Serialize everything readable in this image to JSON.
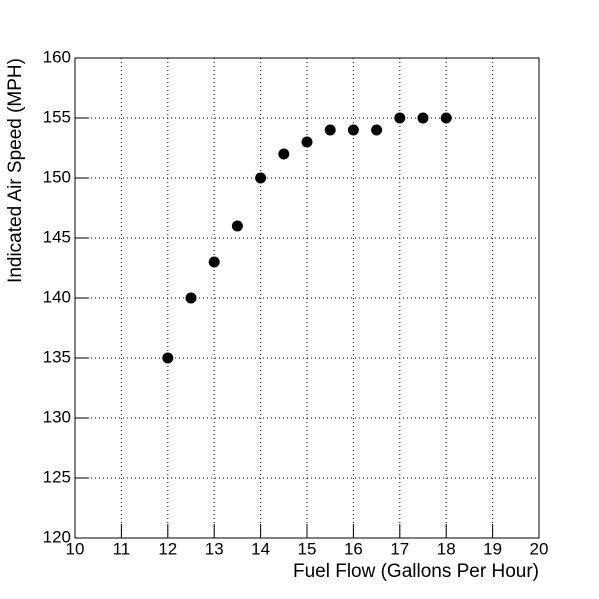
{
  "chart_data": {
    "type": "scatter",
    "x_label": "Fuel Flow (Gallons Per Hour)",
    "y_label": "Indicated Air Speed (MPH)",
    "series": [
      {
        "color": "#000000",
        "x": [
          12,
          12.5,
          13,
          13.5,
          14,
          14.5,
          15,
          15.5,
          16,
          16.5,
          17,
          17.5,
          18
        ],
        "values": [
          135,
          140,
          143,
          146,
          150,
          152,
          153,
          154,
          154,
          154,
          155,
          155,
          155
        ]
      }
    ],
    "xlim": [
      10,
      20
    ],
    "xticks": [
      10,
      11,
      12,
      13,
      14,
      15,
      16,
      17,
      18,
      19,
      20
    ],
    "ylim": [
      120,
      160
    ],
    "yticks": [
      120,
      125,
      130,
      135,
      140,
      145,
      150,
      155,
      160
    ],
    "grid": true
  }
}
